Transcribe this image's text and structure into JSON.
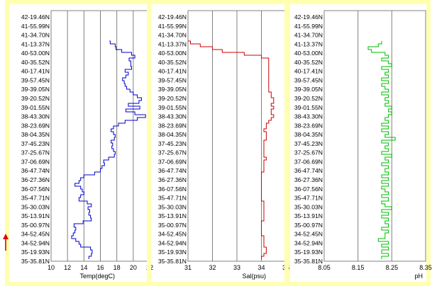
{
  "chart_data": [
    {
      "type": "line",
      "xlabel": "Temp(degC)",
      "xlim": [
        10,
        22
      ],
      "xticks": [
        "10",
        "12",
        "14",
        "16",
        "18",
        "20",
        "22"
      ],
      "grid": true,
      "color": "#0000cc",
      "frame_color": "#ffffb0",
      "series": [
        {
          "x": [
            14.6,
            14.9,
            15.0,
            14.8,
            13.6,
            13.4,
            13.0,
            12.5,
            12.7,
            12.9,
            13.0,
            12.8,
            13.9,
            14.9,
            14.8,
            14.6,
            14.7,
            14.5,
            14.9,
            14.4,
            13.4,
            13.6,
            14.0,
            13.8,
            13.6,
            12.9,
            13.4,
            13.6,
            14.0,
            15.3,
            16.0,
            16.2,
            16.5,
            16.4,
            17.0,
            17.7,
            17.8,
            17.6,
            17.4,
            17.5,
            17.3,
            17.7,
            17.8,
            17.6,
            17.3,
            17.6,
            18.2,
            19.0,
            20.5,
            21.5,
            20.2,
            19.1,
            20.8,
            19.4,
            20.7,
            21.0,
            20.5,
            20.0,
            19.6,
            19.2,
            19.0,
            18.9,
            18.7,
            19.1,
            19.4,
            19.0,
            19.8,
            19.7,
            19.7,
            19.5,
            20.2,
            19.8,
            18.6,
            17.9,
            17.8,
            17.2,
            17.1
          ],
          "y": [
            366,
            362,
            358,
            353,
            349,
            345,
            341,
            337,
            333,
            329,
            325,
            321,
            316,
            312,
            308,
            304,
            300,
            296,
            292,
            288,
            284,
            279,
            275,
            271,
            267,
            263,
            259,
            255,
            251,
            247,
            243,
            238,
            234,
            230,
            226,
            222,
            218,
            214,
            210,
            206,
            202,
            198,
            194,
            190,
            186,
            182,
            178,
            174,
            170,
            166,
            162,
            158,
            154,
            150,
            146,
            142,
            138,
            134,
            130,
            126,
            122,
            118,
            114,
            110,
            106,
            102,
            98,
            94,
            90,
            86,
            82,
            78,
            74,
            70,
            66,
            62,
            58
          ]
        }
      ]
    },
    {
      "type": "line",
      "xlabel": "Sal(psu)",
      "xlim": [
        31,
        35
      ],
      "xticks": [
        "31",
        "32",
        "33",
        "34",
        "35"
      ],
      "grid": true,
      "color": "#cc0000",
      "frame_color": "#ffffb0",
      "series": [
        {
          "x": [
            34.0,
            34.1,
            34.2,
            34.2,
            34.1,
            34.1,
            34.1,
            34.1,
            34.0,
            34.0,
            34.0,
            34.0,
            34.0,
            34.1,
            34.1,
            34.1,
            34.1,
            34.1,
            34.1,
            34.1,
            34.0,
            34.0,
            34.0,
            34.0,
            34.0,
            34.0,
            34.0,
            34.0,
            34.0,
            34.0,
            34.1,
            34.1,
            34.1,
            34.1,
            34.2,
            34.1,
            34.1,
            34.1,
            34.1,
            34.1,
            34.1,
            34.2,
            34.2,
            34.2,
            34.1,
            34.2,
            34.2,
            34.3,
            34.4,
            34.5,
            34.4,
            34.4,
            34.5,
            34.4,
            34.5,
            34.5,
            34.4,
            34.4,
            34.3,
            34.3,
            34.3,
            34.3,
            34.3,
            34.3,
            34.3,
            34.3,
            34.3,
            34.3,
            34.3,
            34.3,
            34.0,
            33.3,
            32.4,
            32.0,
            31.5,
            31.1,
            31.0
          ],
          "y": [
            366,
            362,
            358,
            353,
            349,
            345,
            341,
            337,
            333,
            329,
            325,
            321,
            316,
            312,
            308,
            304,
            300,
            296,
            292,
            288,
            284,
            279,
            275,
            271,
            267,
            263,
            259,
            255,
            251,
            247,
            243,
            238,
            234,
            230,
            226,
            222,
            218,
            214,
            210,
            206,
            202,
            198,
            194,
            190,
            186,
            182,
            178,
            174,
            170,
            166,
            162,
            158,
            154,
            150,
            146,
            142,
            138,
            134,
            130,
            126,
            122,
            118,
            114,
            110,
            106,
            102,
            98,
            94,
            90,
            86,
            82,
            78,
            74,
            70,
            66,
            62,
            58
          ]
        }
      ]
    },
    {
      "type": "line",
      "xlabel": "pH",
      "xlim": [
        8.05,
        8.35
      ],
      "xticks": [
        "8.05",
        "8.15",
        "8.25",
        "8.35"
      ],
      "grid": true,
      "color": "#00bb00",
      "frame_color": "#ffffb0",
      "series": [
        {
          "x": [
            8.22,
            8.24,
            8.22,
            8.24,
            8.22,
            8.24,
            8.21,
            8.23,
            8.23,
            8.24,
            8.22,
            8.24,
            8.23,
            8.24,
            8.22,
            8.24,
            8.22,
            8.25,
            8.23,
            8.22,
            8.24,
            8.22,
            8.24,
            8.23,
            8.22,
            8.24,
            8.22,
            8.24,
            8.22,
            8.24,
            8.23,
            8.24,
            8.22,
            8.24,
            8.23,
            8.25,
            8.22,
            8.24,
            8.23,
            8.24,
            8.22,
            8.26,
            8.23,
            8.24,
            8.22,
            8.24,
            8.22,
            8.24,
            8.23,
            8.24,
            8.25,
            8.24,
            8.25,
            8.23,
            8.24,
            8.23,
            8.24,
            8.22,
            8.24,
            8.23,
            8.22,
            8.24,
            8.22,
            8.24,
            8.23,
            8.24,
            8.22,
            8.25,
            8.24,
            8.22,
            8.24,
            8.23,
            8.19,
            8.18,
            8.21,
            8.22,
            8.22
          ],
          "y": [
            366,
            362,
            358,
            353,
            349,
            345,
            341,
            337,
            333,
            329,
            325,
            321,
            316,
            312,
            308,
            304,
            300,
            296,
            292,
            288,
            284,
            279,
            275,
            271,
            267,
            263,
            259,
            255,
            251,
            247,
            243,
            238,
            234,
            230,
            226,
            222,
            218,
            214,
            210,
            206,
            202,
            198,
            194,
            190,
            186,
            182,
            178,
            174,
            170,
            166,
            162,
            158,
            154,
            150,
            146,
            142,
            138,
            134,
            130,
            126,
            122,
            118,
            114,
            110,
            106,
            102,
            98,
            94,
            90,
            86,
            82,
            78,
            74,
            70,
            66,
            62,
            58
          ]
        }
      ]
    }
  ],
  "y_axis": {
    "labels": [
      "42-19.46N",
      "41-55.99N",
      "41-34.70N",
      "41-13.37N",
      "40-53.00N",
      "40-35.52N",
      "40-17.41N",
      "39-57.45N",
      "39-39.05N",
      "39-20.52N",
      "39-01.55N",
      "38-43.30N",
      "38-23.69N",
      "38-04.35N",
      "37-45.23N",
      "37-25.67N",
      "37-06.69N",
      "36-47.74N",
      "36-27.36N",
      "36-07.56N",
      "35-47.71N",
      "35-30.03N",
      "35-13.91N",
      "35-00.97N",
      "34-52.45N",
      "34-52.94N",
      "35-19.93N",
      "35-35.81N"
    ]
  },
  "annotation": {
    "arrow_color": "#dd0000",
    "arrow_direction": "up"
  }
}
